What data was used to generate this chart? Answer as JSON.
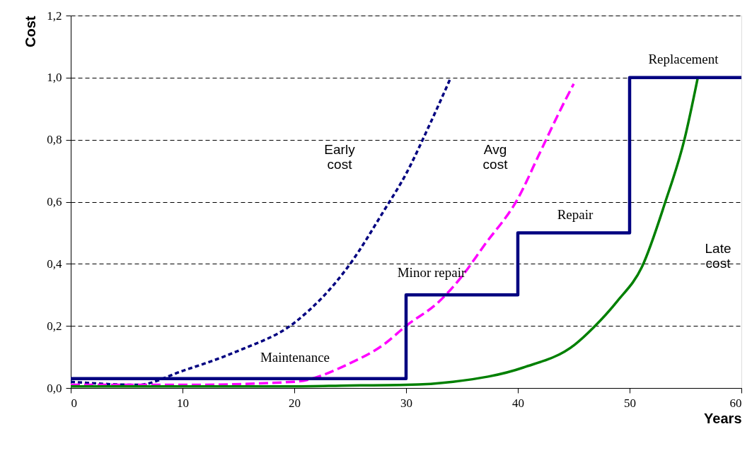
{
  "chart_data": {
    "type": "line",
    "xlabel": "Years",
    "ylabel": "Cost",
    "xlim": [
      0,
      60
    ],
    "xticks": [
      0,
      10,
      20,
      30,
      40,
      50,
      60
    ],
    "ylim": [
      0,
      1.2
    ],
    "yticks": [
      {
        "value": 0,
        "label": "0,0"
      },
      {
        "value": 0.2,
        "label": "0,2"
      },
      {
        "value": 0.4,
        "label": "0,4"
      },
      {
        "value": 0.6,
        "label": "0,6"
      },
      {
        "value": 0.8,
        "label": "0,8"
      },
      {
        "value": 1.0,
        "label": "1,0"
      },
      {
        "value": 1.2,
        "label": "1,2"
      }
    ],
    "grid": "y",
    "legend": false,
    "series": [
      {
        "type": "line",
        "color": "#000080",
        "line_style": "dotted",
        "x": [
          0,
          6,
          10,
          15,
          20,
          25,
          28,
          30,
          32,
          34
        ],
        "values": [
          0.02,
          0.01,
          0.055,
          0.12,
          0.21,
          0.4,
          0.57,
          0.69,
          0.84,
          1.0
        ]
      },
      {
        "type": "line",
        "color": "#ff00ff",
        "line_style": "dashed",
        "x": [
          0,
          10,
          20,
          25,
          28,
          30,
          33,
          35,
          37,
          40,
          42,
          44,
          45
        ],
        "values": [
          0.01,
          0.01,
          0.02,
          0.08,
          0.14,
          0.2,
          0.28,
          0.36,
          0.46,
          0.61,
          0.76,
          0.91,
          0.98
        ]
      },
      {
        "type": "line",
        "color": "#008000",
        "line_style": "solid",
        "x": [
          0,
          20,
          25,
          30,
          34.2,
          40.5,
          45.1,
          46.8,
          48.9,
          51.1,
          53.2,
          54.9,
          56.1
        ],
        "values": [
          0.005,
          0.005,
          0.008,
          0.01,
          0.02,
          0.066,
          0.14,
          0.196,
          0.28,
          0.39,
          0.6,
          0.8,
          1.0
        ]
      },
      {
        "type": "step",
        "color": "#000080",
        "line_style": "solid",
        "x": [
          0,
          30,
          40,
          50,
          60
        ],
        "values": [
          0.03,
          0.3,
          0.5,
          1.0,
          1.0
        ]
      }
    ],
    "annotations": [
      "Early\ncost",
      "Avg\ncost",
      "Late\ncost",
      "Maintenance",
      "Minor repair",
      "Repair",
      "Replacement"
    ]
  }
}
